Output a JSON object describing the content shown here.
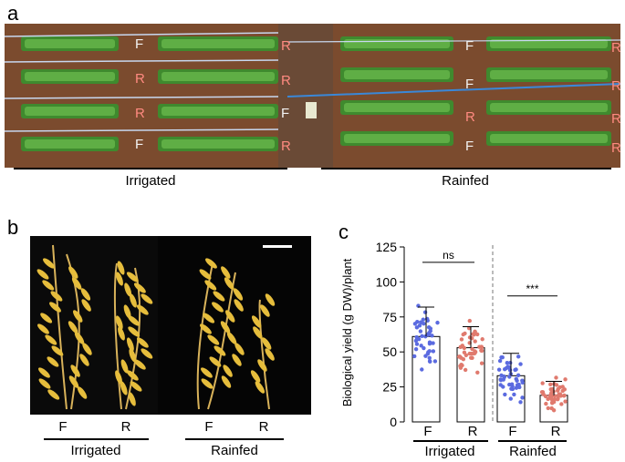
{
  "panel_a": {
    "label": "a",
    "plot_letters": [
      "F",
      "R",
      "F",
      "R",
      "R",
      "R",
      "F",
      "R",
      "R",
      "F",
      "R",
      "R",
      "F",
      "R",
      "F",
      "R"
    ],
    "groups": [
      "Irrigated",
      "Rainfed"
    ]
  },
  "panel_b": {
    "label": "b",
    "ticks": [
      "F",
      "R",
      "F",
      "R"
    ],
    "groups": [
      "Irrigated",
      "Rainfed"
    ]
  },
  "panel_c": {
    "label": "c",
    "chart_data": {
      "type": "bar",
      "categories": [
        "F",
        "R",
        "F",
        "R"
      ],
      "groups": [
        "Irrigated",
        "Rainfed"
      ],
      "ylabel": "Biological yield (g DW)/plant",
      "ylim": [
        0,
        125
      ],
      "yticks": [
        0,
        25,
        50,
        75,
        100,
        125
      ],
      "means": [
        61,
        53,
        33,
        19
      ],
      "sd": [
        21,
        15,
        16,
        10
      ],
      "point_colors": [
        "#5b6be0",
        "#e07a6e",
        "#5b6be0",
        "#e07a6e"
      ],
      "annotations": [
        {
          "text": "ns",
          "between": [
            0,
            1
          ]
        },
        {
          "text": "***",
          "between": [
            2,
            3
          ]
        }
      ]
    }
  }
}
